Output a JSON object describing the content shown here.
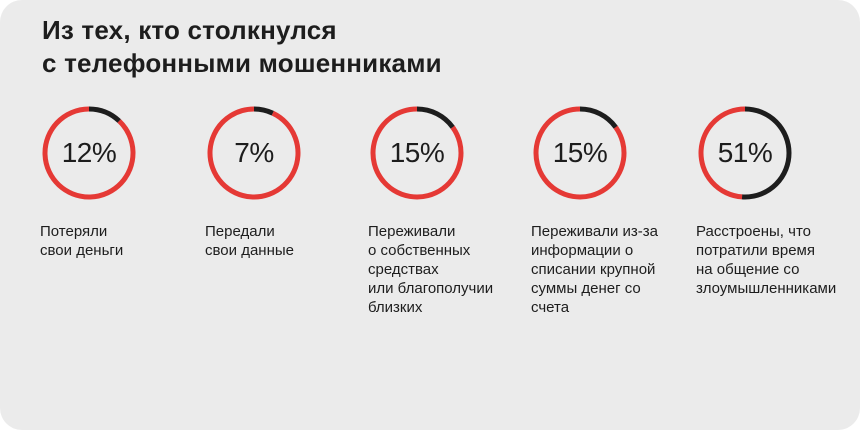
{
  "title_lines": [
    "Из тех, кто столкнулся",
    "с телефонными мошенниками"
  ],
  "colors": {
    "accent": "#e53935",
    "remainder": "#1d1d1d",
    "text": "#1d1d1d",
    "background": "#ebebeb"
  },
  "chart_data": {
    "type": "pie",
    "title": "Из тех, кто столкнулся с телефонными мошенниками",
    "items": [
      {
        "label": "12%",
        "value": 12,
        "caption": [
          "Потеряли",
          "свои деньги"
        ]
      },
      {
        "label": "7%",
        "value": 7,
        "caption": [
          "Передали",
          "свои данные"
        ]
      },
      {
        "label": "15%",
        "value": 15,
        "caption": [
          "Переживали",
          "о собственных",
          "средствах",
          "или благополучии",
          "близких"
        ]
      },
      {
        "label": "15%",
        "value": 15,
        "caption": [
          "Переживали из-за",
          "информации о",
          "списании крупной",
          "суммы денег со",
          "счета"
        ]
      },
      {
        "label": "51%",
        "value": 51,
        "caption": [
          "Расстроены, что",
          "потратили время",
          "на общение со",
          "злоумышленниками"
        ]
      }
    ]
  }
}
